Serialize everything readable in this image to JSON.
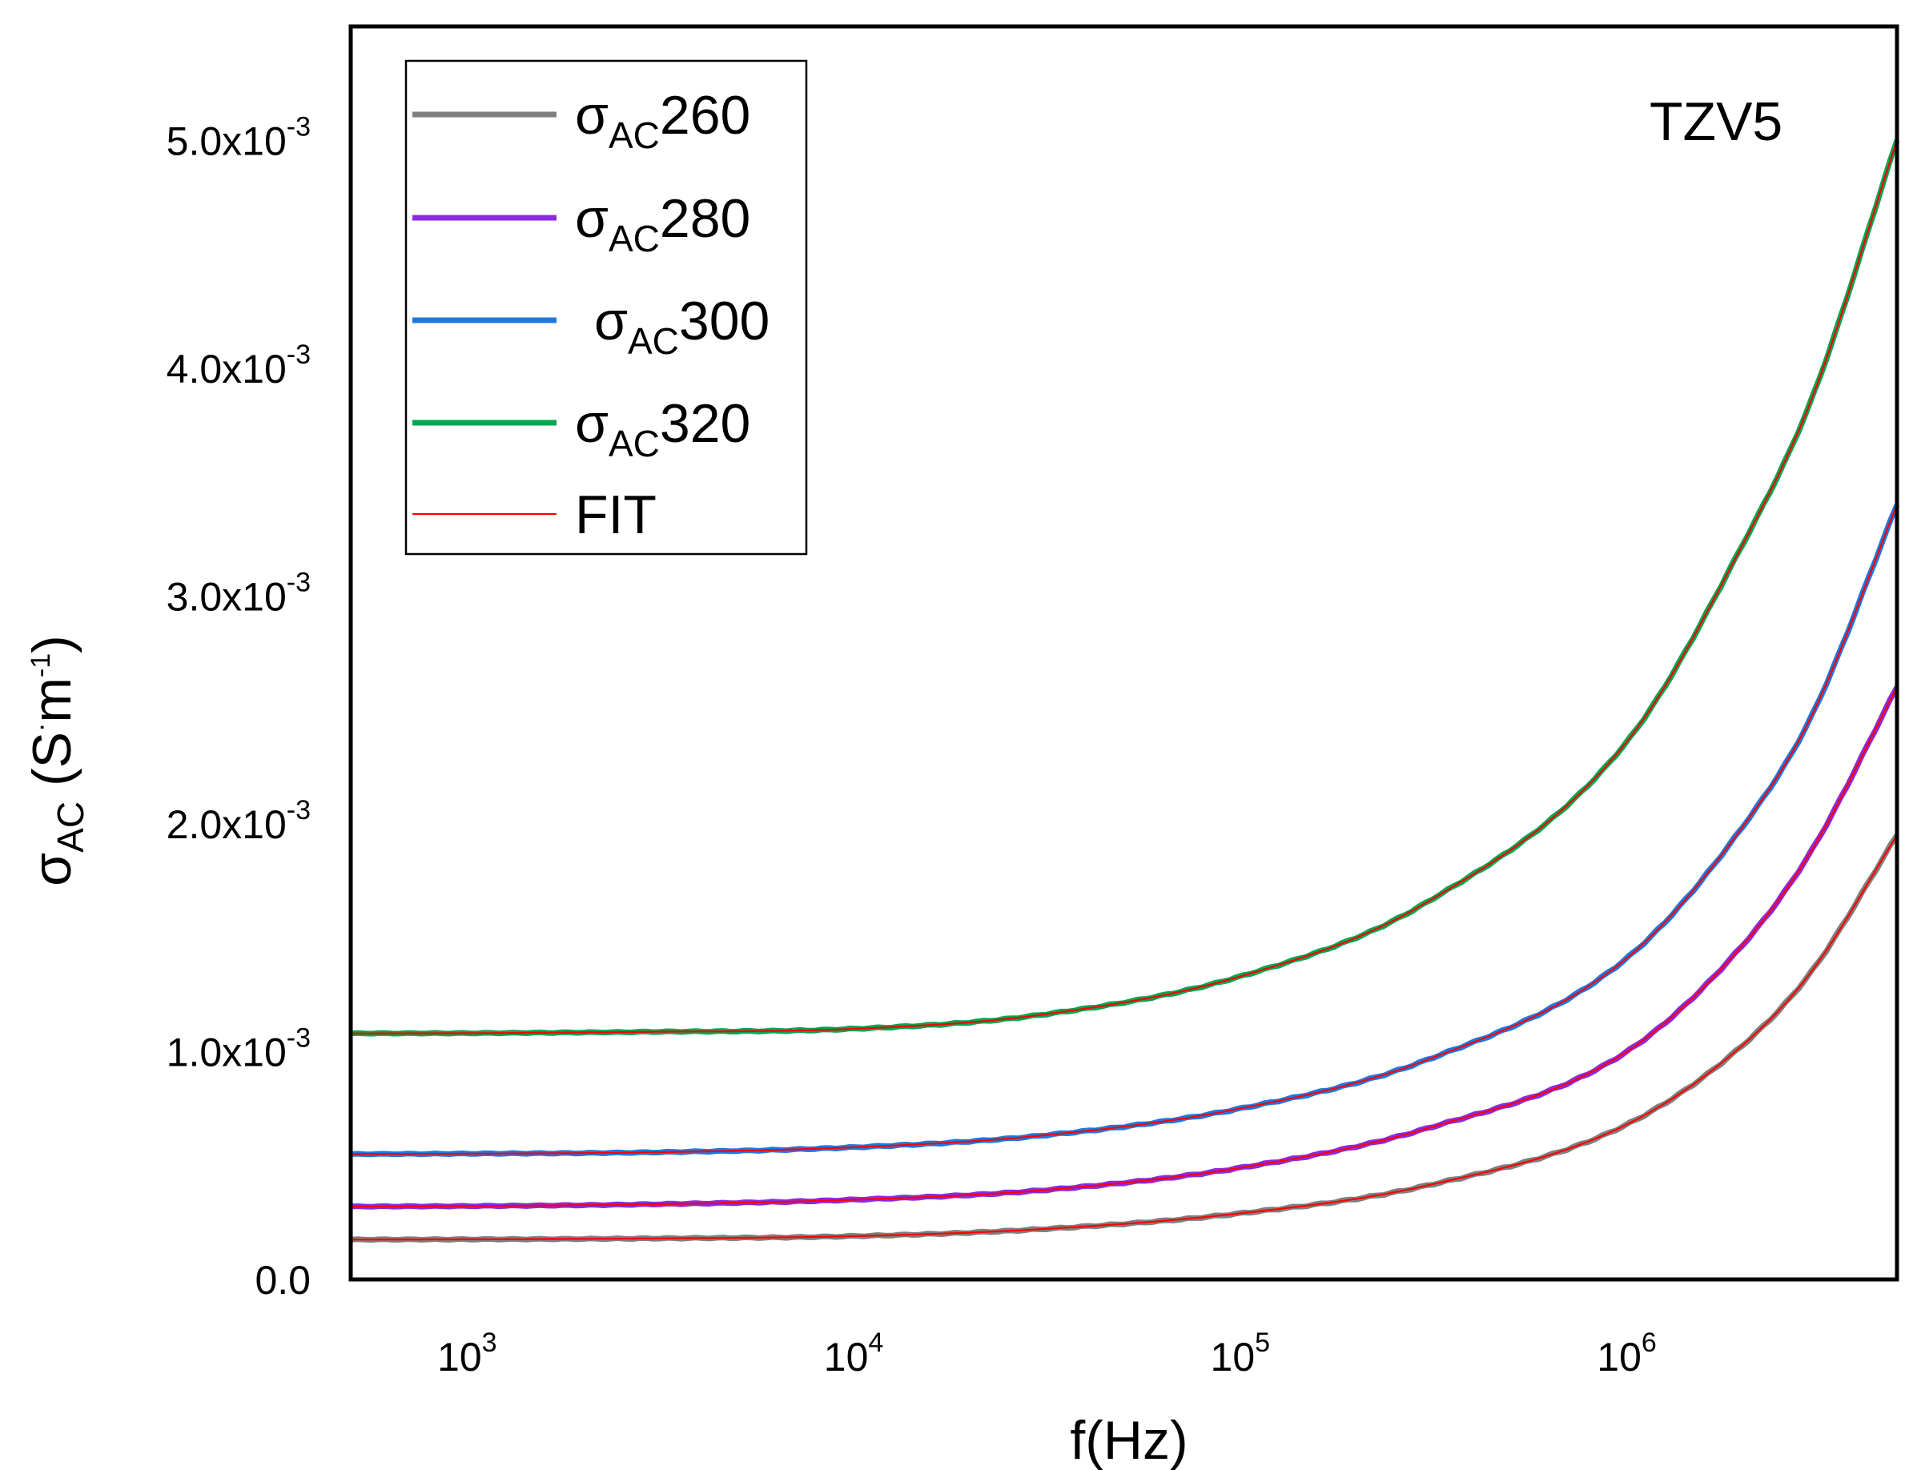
{
  "chart_data": {
    "type": "line",
    "annotation": "TZV5",
    "xlabel": "f(Hz)",
    "ylabel": {
      "symbol": "σ",
      "sub": "AC",
      "unit_pre": " (S",
      "dot": "·",
      "unit_mid": "m",
      "unit_exp": "-1",
      "unit_post": ")"
    },
    "x_scale": "log",
    "xlim": [
      500,
      5000000
    ],
    "ylim": [
      0,
      0.0055
    ],
    "x_ticks": [
      {
        "value": 1000,
        "base": "10",
        "exp": "3"
      },
      {
        "value": 10000,
        "base": "10",
        "exp": "4"
      },
      {
        "value": 100000,
        "base": "10",
        "exp": "5"
      },
      {
        "value": 1000000,
        "base": "10",
        "exp": "6"
      }
    ],
    "y_ticks": [
      {
        "value": 0,
        "mantissa": "0.0",
        "exp": ""
      },
      {
        "value": 0.001,
        "mantissa": "1.0x10",
        "exp": "-3"
      },
      {
        "value": 0.002,
        "mantissa": "2.0x10",
        "exp": "-3"
      },
      {
        "value": 0.003,
        "mantissa": "3.0x10",
        "exp": "-3"
      },
      {
        "value": 0.004,
        "mantissa": "4.0x10",
        "exp": "-3"
      },
      {
        "value": 0.005,
        "mantissa": "5.0x10",
        "exp": "-3"
      }
    ],
    "x": [
      500,
      1000,
      3000,
      10000,
      30000,
      100000,
      300000,
      1000000,
      2000000,
      3000000,
      5000000
    ],
    "series": [
      {
        "name": "σAC260",
        "symbol": "σ",
        "sub": "AC",
        "num": "260",
        "color": "#7f7f7f",
        "values": [
          0.000175,
          0.000176,
          0.00018,
          0.00019,
          0.00022,
          0.00029,
          0.00041,
          0.00068,
          0.00103,
          0.00135,
          0.00195
        ]
      },
      {
        "name": "σAC280",
        "symbol": "σ",
        "sub": "AC",
        "num": "280",
        "color": "#8a2be2",
        "values": [
          0.00032,
          0.000322,
          0.00033,
          0.00035,
          0.00039,
          0.00049,
          0.00066,
          0.001,
          0.00147,
          0.00188,
          0.0026
        ]
      },
      {
        "name": "σAC300",
        "symbol": "σ",
        "sub": "AC",
        "num": "300",
        "color": "#1f77e0",
        "values": [
          0.00055,
          0.000552,
          0.000558,
          0.00058,
          0.00063,
          0.00075,
          0.00096,
          0.00141,
          0.00199,
          0.00247,
          0.0034
        ]
      },
      {
        "name": "σAC320",
        "symbol": "σ",
        "sub": "AC",
        "num": "320",
        "color": "#00a651",
        "values": [
          0.00108,
          0.001081,
          0.001087,
          0.0011,
          0.00116,
          0.00133,
          0.00165,
          0.00236,
          0.00323,
          0.00386,
          0.005
        ]
      },
      {
        "name": "FIT",
        "color": "#ff0000",
        "fit_of": [
          "σAC260",
          "σAC280",
          "σAC300",
          "σAC320"
        ]
      }
    ],
    "legend_position": "top-left"
  }
}
